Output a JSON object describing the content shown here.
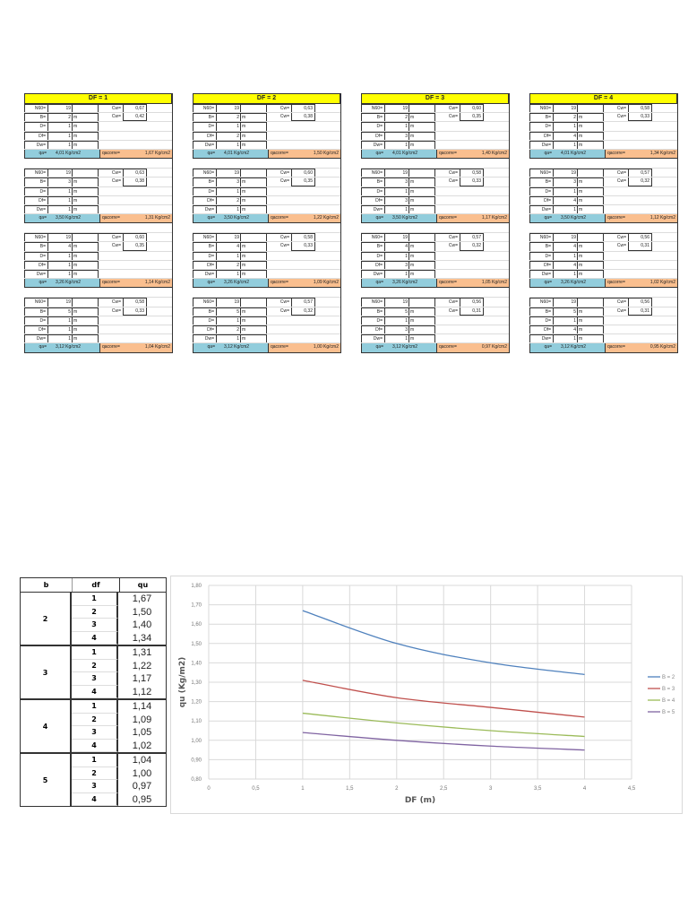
{
  "labels": {
    "n60": "N60=",
    "b": "B=",
    "d": "D=",
    "df": "Df=",
    "dw": "Dw=",
    "cw": "Cw=",
    "unit_m": "m",
    "qa": "qa=",
    "qacorr": "qacorre=",
    "unit_kg": "Kg/cm2"
  },
  "sheets": [
    {
      "title": "DF = 1",
      "groups": [
        {
          "n60": "19",
          "b": "2",
          "d": "1",
          "df": "1",
          "dw": "1",
          "cw1": "0,67",
          "cw2": "0,42",
          "qa": "4,01",
          "qacorr": "1,67"
        },
        {
          "n60": "19",
          "b": "3",
          "d": "1",
          "df": "1",
          "dw": "1",
          "cw1": "0,63",
          "cw2": "0,38",
          "qa": "3,50",
          "qacorr": "1,31"
        },
        {
          "n60": "19",
          "b": "4",
          "d": "1",
          "df": "1",
          "dw": "1",
          "cw1": "0,60",
          "cw2": "0,35",
          "qa": "3,26",
          "qacorr": "1,14"
        },
        {
          "n60": "19",
          "b": "5",
          "d": "1",
          "df": "1",
          "dw": "1",
          "cw1": "0,58",
          "cw2": "0,33",
          "qa": "3,12",
          "qacorr": "1,04"
        }
      ]
    },
    {
      "title": "DF = 2",
      "groups": [
        {
          "n60": "19",
          "b": "2",
          "d": "1",
          "df": "2",
          "dw": "1",
          "cw1": "0,63",
          "cw2": "0,38",
          "qa": "4,01",
          "qacorr": "1,50"
        },
        {
          "n60": "19",
          "b": "3",
          "d": "1",
          "df": "2",
          "dw": "1",
          "cw1": "0,60",
          "cw2": "0,35",
          "qa": "3,50",
          "qacorr": "1,22"
        },
        {
          "n60": "19",
          "b": "4",
          "d": "1",
          "df": "2",
          "dw": "1",
          "cw1": "0,58",
          "cw2": "0,33",
          "qa": "3,26",
          "qacorr": "1,09"
        },
        {
          "n60": "19",
          "b": "5",
          "d": "1",
          "df": "2",
          "dw": "1",
          "cw1": "0,57",
          "cw2": "0,32",
          "qa": "3,12",
          "qacorr": "1,00"
        }
      ]
    },
    {
      "title": "DF = 3",
      "groups": [
        {
          "n60": "19",
          "b": "2",
          "d": "1",
          "df": "3",
          "dw": "1",
          "cw1": "0,60",
          "cw2": "0,35",
          "qa": "4,01",
          "qacorr": "1,40"
        },
        {
          "n60": "19",
          "b": "3",
          "d": "1",
          "df": "3",
          "dw": "1",
          "cw1": "0,58",
          "cw2": "0,33",
          "qa": "3,50",
          "qacorr": "1,17"
        },
        {
          "n60": "19",
          "b": "4",
          "d": "1",
          "df": "3",
          "dw": "1",
          "cw1": "0,57",
          "cw2": "0,32",
          "qa": "3,26",
          "qacorr": "1,05"
        },
        {
          "n60": "19",
          "b": "5",
          "d": "1",
          "df": "3",
          "dw": "1",
          "cw1": "0,56",
          "cw2": "0,31",
          "qa": "3,12",
          "qacorr": "0,97"
        }
      ]
    },
    {
      "title": "DF = 4",
      "groups": [
        {
          "n60": "19",
          "b": "2",
          "d": "1",
          "df": "4",
          "dw": "1",
          "cw1": "0,58",
          "cw2": "0,33",
          "qa": "4,01",
          "qacorr": "1,34"
        },
        {
          "n60": "19",
          "b": "3",
          "d": "1",
          "df": "4",
          "dw": "1",
          "cw1": "0,57",
          "cw2": "0,32",
          "qa": "3,50",
          "qacorr": "1,12"
        },
        {
          "n60": "19",
          "b": "4",
          "d": "1",
          "df": "4",
          "dw": "1",
          "cw1": "0,56",
          "cw2": "0,31",
          "qa": "3,26",
          "qacorr": "1,02"
        },
        {
          "n60": "19",
          "b": "5",
          "d": "1",
          "df": "4",
          "dw": "1",
          "cw1": "0,56",
          "cw2": "0,31",
          "qa": "3,12",
          "qacorr": "0,95"
        }
      ]
    }
  ],
  "summary_table": {
    "headers": [
      "b",
      "df",
      "qu"
    ],
    "groups": [
      {
        "b": "2",
        "rows": [
          {
            "df": "1",
            "qu": "1,67"
          },
          {
            "df": "2",
            "qu": "1,50"
          },
          {
            "df": "3",
            "qu": "1,40"
          },
          {
            "df": "4",
            "qu": "1,34"
          }
        ]
      },
      {
        "b": "3",
        "rows": [
          {
            "df": "1",
            "qu": "1,31"
          },
          {
            "df": "2",
            "qu": "1,22"
          },
          {
            "df": "3",
            "qu": "1,17"
          },
          {
            "df": "4",
            "qu": "1,12"
          }
        ]
      },
      {
        "b": "4",
        "rows": [
          {
            "df": "1",
            "qu": "1,14"
          },
          {
            "df": "2",
            "qu": "1,09"
          },
          {
            "df": "3",
            "qu": "1,05"
          },
          {
            "df": "4",
            "qu": "1,02"
          }
        ]
      },
      {
        "b": "5",
        "rows": [
          {
            "df": "1",
            "qu": "1,04"
          },
          {
            "df": "2",
            "qu": "1,00"
          },
          {
            "df": "3",
            "qu": "0,97"
          },
          {
            "df": "4",
            "qu": "0,95"
          }
        ]
      }
    ]
  },
  "chart_data": {
    "type": "line",
    "title": "",
    "xlabel": "DF (m)",
    "ylabel": "qu (Kg/m2)",
    "x": [
      1,
      2,
      3,
      4
    ],
    "xlim": [
      0,
      4.5
    ],
    "ylim": [
      0.8,
      1.8
    ],
    "xticks": [
      "0",
      "0,5",
      "1",
      "1,5",
      "2",
      "2,5",
      "3",
      "3,5",
      "4",
      "4,5"
    ],
    "yticks": [
      "0,80",
      "0,90",
      "1,00",
      "1,10",
      "1,20",
      "1,30",
      "1,40",
      "1,50",
      "1,60",
      "1,70",
      "1,80"
    ],
    "grid": true,
    "legend_position": "right",
    "series": [
      {
        "name": "B = 2",
        "color": "#4f81bd",
        "values": [
          1.67,
          1.5,
          1.4,
          1.34
        ]
      },
      {
        "name": "B = 3",
        "color": "#c0504d",
        "values": [
          1.31,
          1.22,
          1.17,
          1.12
        ]
      },
      {
        "name": "B = 4",
        "color": "#9bbb59",
        "values": [
          1.14,
          1.09,
          1.05,
          1.02
        ]
      },
      {
        "name": "B = 5",
        "color": "#8064a2",
        "values": [
          1.04,
          1.0,
          0.97,
          0.95
        ]
      }
    ]
  }
}
